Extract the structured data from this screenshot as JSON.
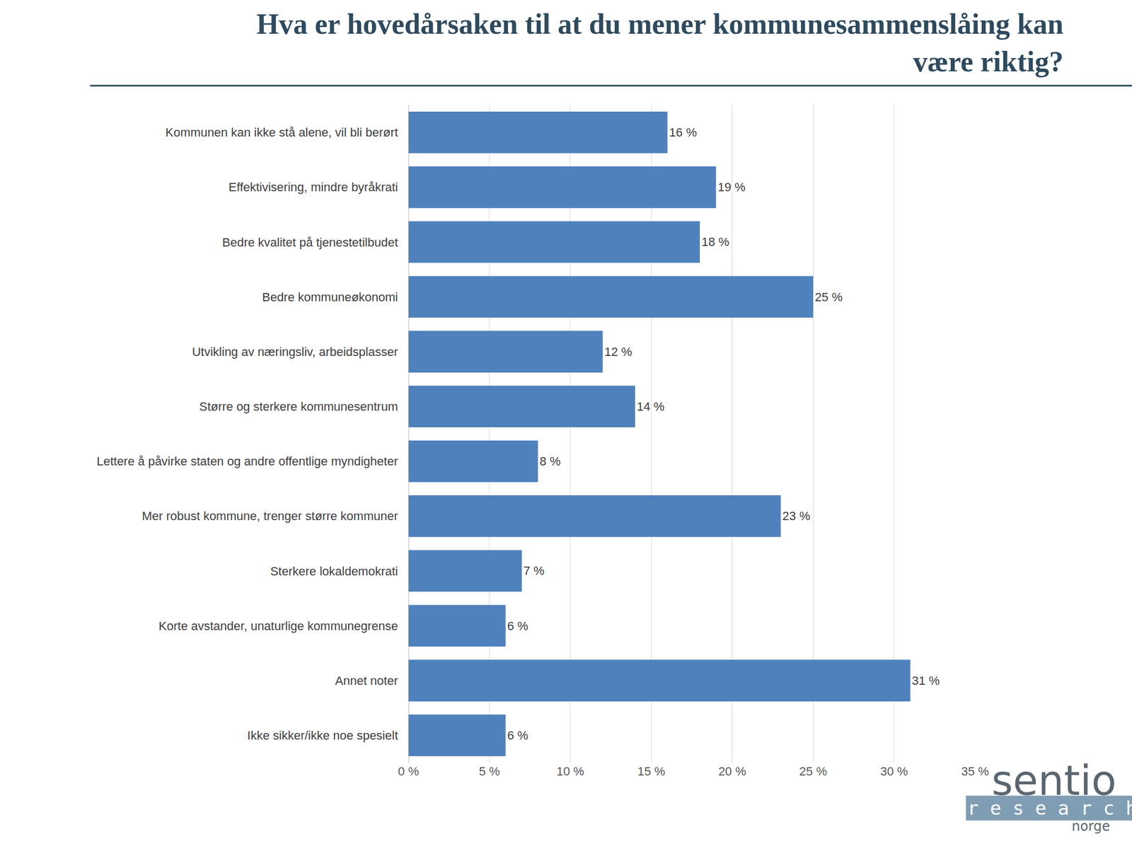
{
  "chart_data": {
    "type": "bar",
    "orientation": "horizontal",
    "title": "Hva er hovedårsaken til at du mener kommunesammenslåing kan være riktig?",
    "categories": [
      "Kommunen kan ikke stå alene, vil bli berørt",
      "Effektivisering, mindre byråkrati",
      "Bedre kvalitet på tjenestetilbudet",
      "Bedre kommuneøkonomi",
      "Utvikling av næringsliv, arbeidsplasser",
      "Større og sterkere kommunesentrum",
      "Lettere å påvirke staten og andre offentlige myndigheter",
      "Mer robust kommune, trenger større kommuner",
      "Sterkere lokaldemokrati",
      "Korte avstander, unaturlige kommunegrense",
      "Annet noter",
      "Ikke sikker/ikke noe spesielt"
    ],
    "values": [
      16,
      19,
      18,
      25,
      12,
      14,
      8,
      23,
      7,
      6,
      31,
      6
    ],
    "value_labels": [
      "16 %",
      "19 %",
      "18 %",
      "25 %",
      "12 %",
      "14 %",
      "8 %",
      "23 %",
      "7 %",
      "6 %",
      "31 %",
      "6 %"
    ],
    "data_labels": true,
    "color": "#4f81bd",
    "xlim": [
      0,
      35
    ],
    "xticks": [
      {
        "value": 0,
        "label": "0 %"
      },
      {
        "value": 5,
        "label": "5 %"
      },
      {
        "value": 10,
        "label": "10 %"
      },
      {
        "value": 15,
        "label": "15 %"
      },
      {
        "value": 20,
        "label": "20 %"
      },
      {
        "value": 25,
        "label": "25 %"
      },
      {
        "value": 30,
        "label": "30 %"
      },
      {
        "value": 35,
        "label": "35 %"
      }
    ],
    "grid": true,
    "annotations": [
      "sentio",
      "research",
      "norge"
    ]
  }
}
